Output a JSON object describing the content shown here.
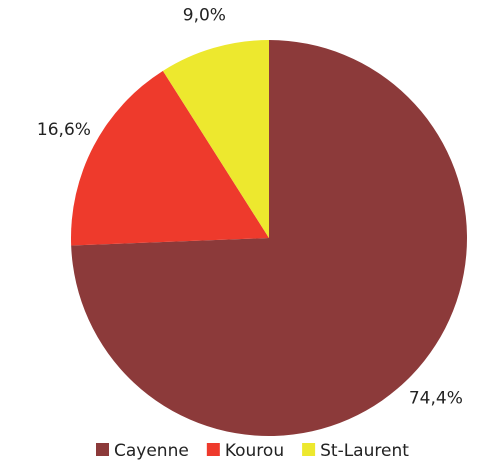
{
  "chart_data": {
    "type": "pie",
    "categories": [
      "Cayenne",
      "Kourou",
      "St-Laurent"
    ],
    "values": [
      74.4,
      16.6,
      9.0
    ],
    "value_labels": [
      "74,4%",
      "16,6%",
      "9,0%"
    ],
    "colors": [
      "#8c3a3a",
      "#ee3a2c",
      "#ede82e"
    ],
    "legend": "bottom"
  }
}
